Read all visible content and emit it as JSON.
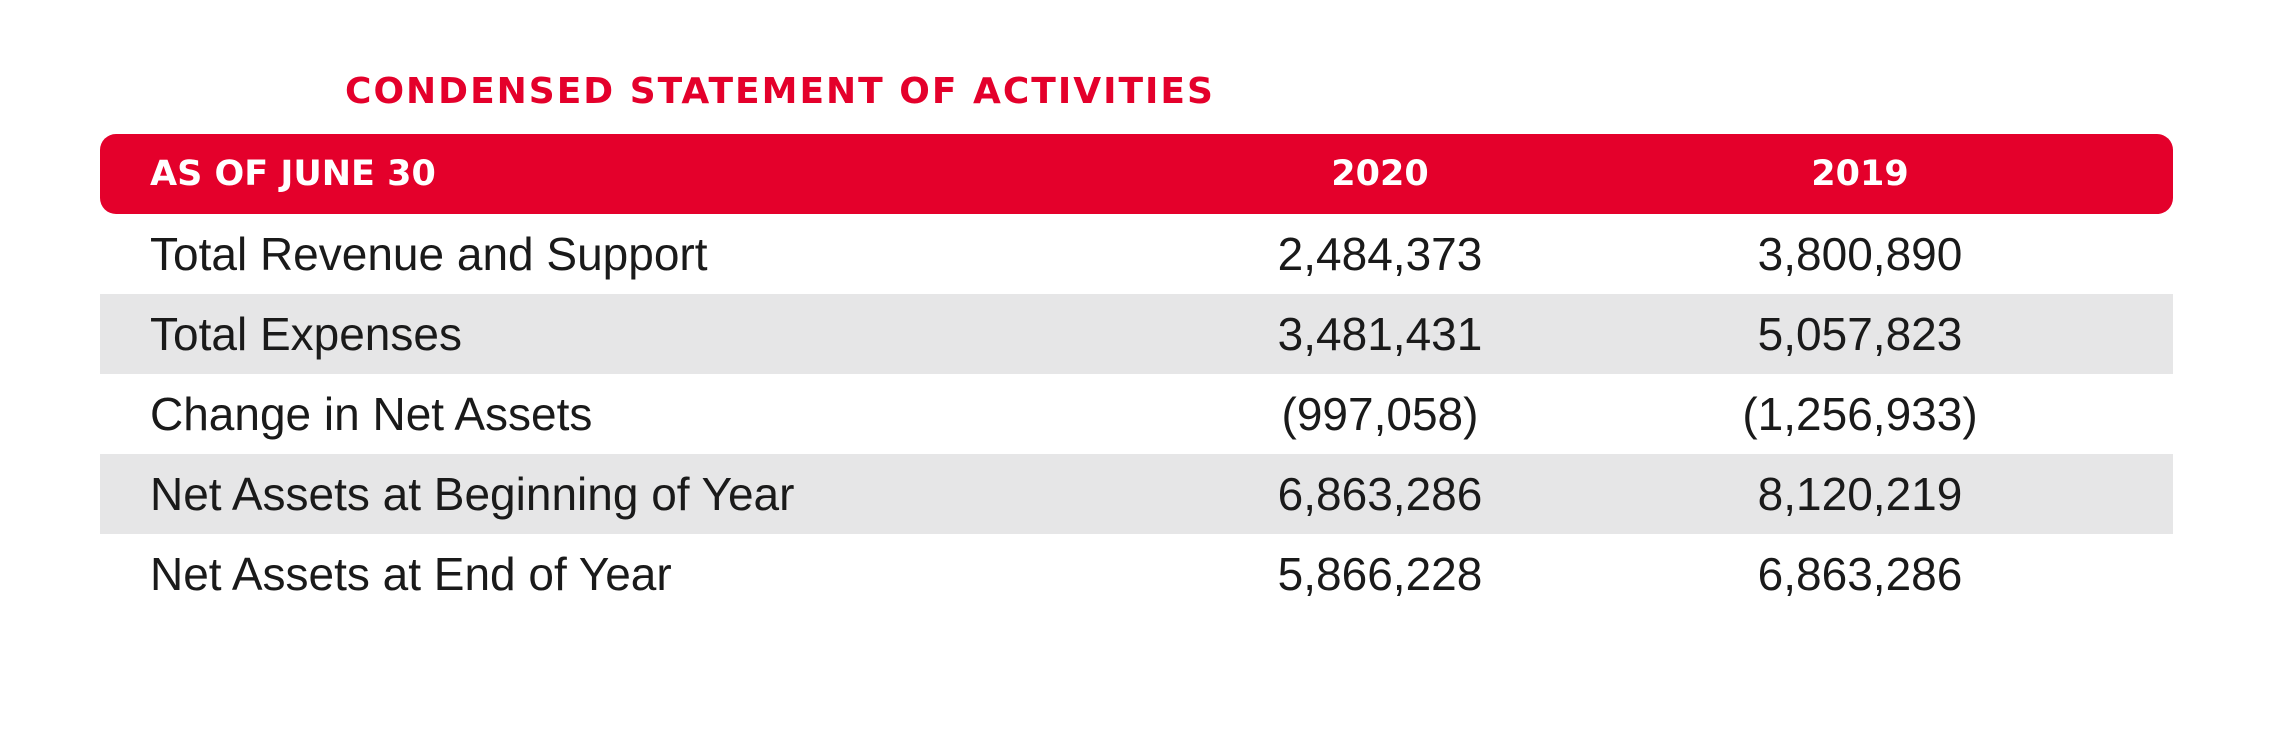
{
  "title": "CONDENSED STATEMENT OF ACTIVITIES",
  "colors": {
    "accent": "#e4002b",
    "row_shade": "#e6e6e7"
  },
  "table": {
    "headers": [
      "AS OF JUNE 30",
      "2020",
      "2019"
    ],
    "rows": [
      [
        "Total Revenue and Support",
        "2,484,373",
        "3,800,890"
      ],
      [
        "Total Expenses",
        "3,481,431",
        "5,057,823"
      ],
      [
        "Change in Net Assets",
        "(997,058)",
        "(1,256,933)"
      ],
      [
        "Net Assets at Beginning of Year",
        "6,863,286",
        "8,120,219"
      ],
      [
        "Net Assets at End of Year",
        "5,866,228",
        "6,863,286"
      ]
    ]
  }
}
